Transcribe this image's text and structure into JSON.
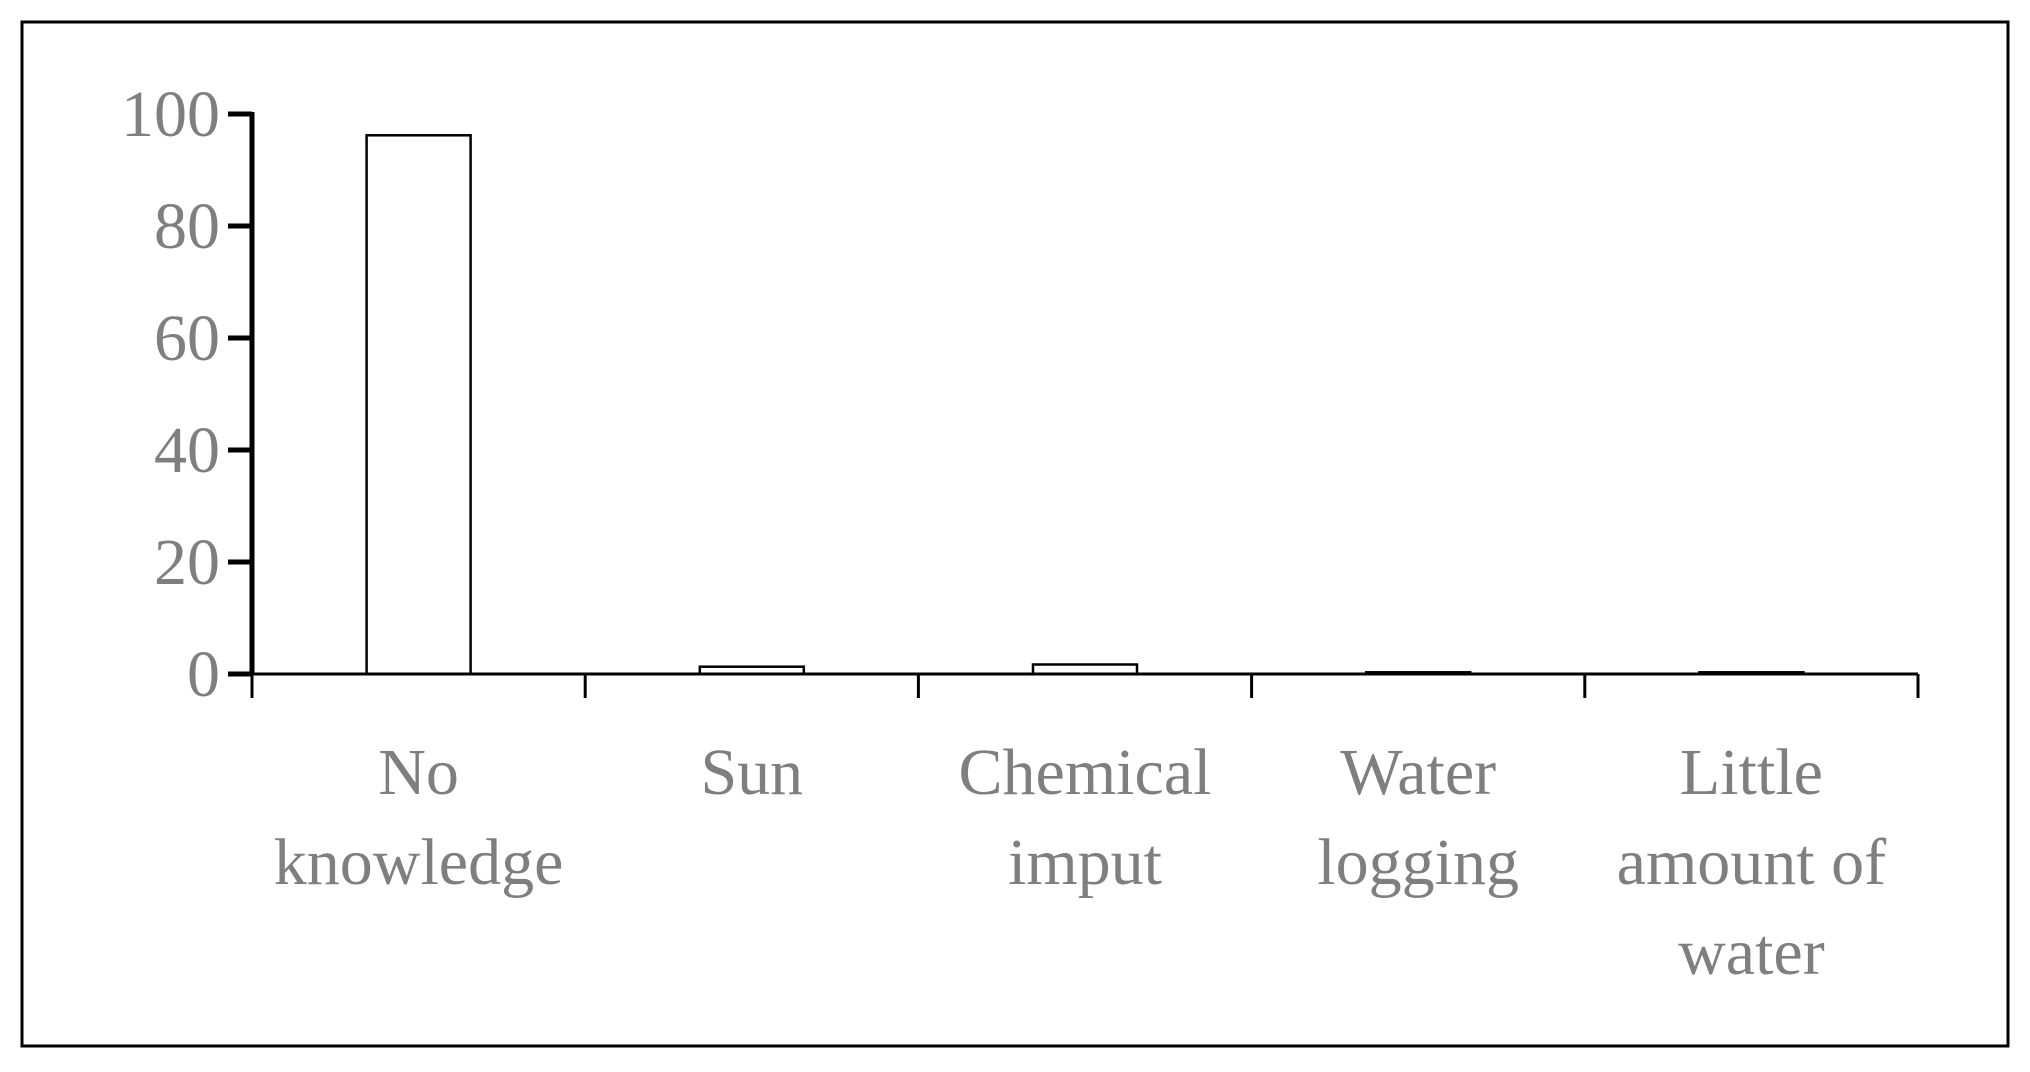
{
  "chart_data": {
    "type": "bar",
    "categories": [
      [
        "No",
        "knowledge"
      ],
      [
        "Sun"
      ],
      [
        "Chemical",
        "imput"
      ],
      [
        "Water",
        "logging"
      ],
      [
        "Little",
        "amount of",
        "water"
      ]
    ],
    "values": [
      96.2,
      1.3,
      1.7,
      0.3,
      0.3
    ],
    "title": "",
    "xlabel": "",
    "ylabel": "",
    "ylim": [
      0,
      100
    ],
    "yticks": [
      0,
      20,
      40,
      60,
      80,
      100
    ],
    "grid": false,
    "legend": "none",
    "colors": {
      "bar_fill": "#ffffff",
      "bar_stroke": "#000000",
      "axis": "#000000",
      "label_text": "#7f7f7f",
      "frame": "#000000"
    }
  }
}
